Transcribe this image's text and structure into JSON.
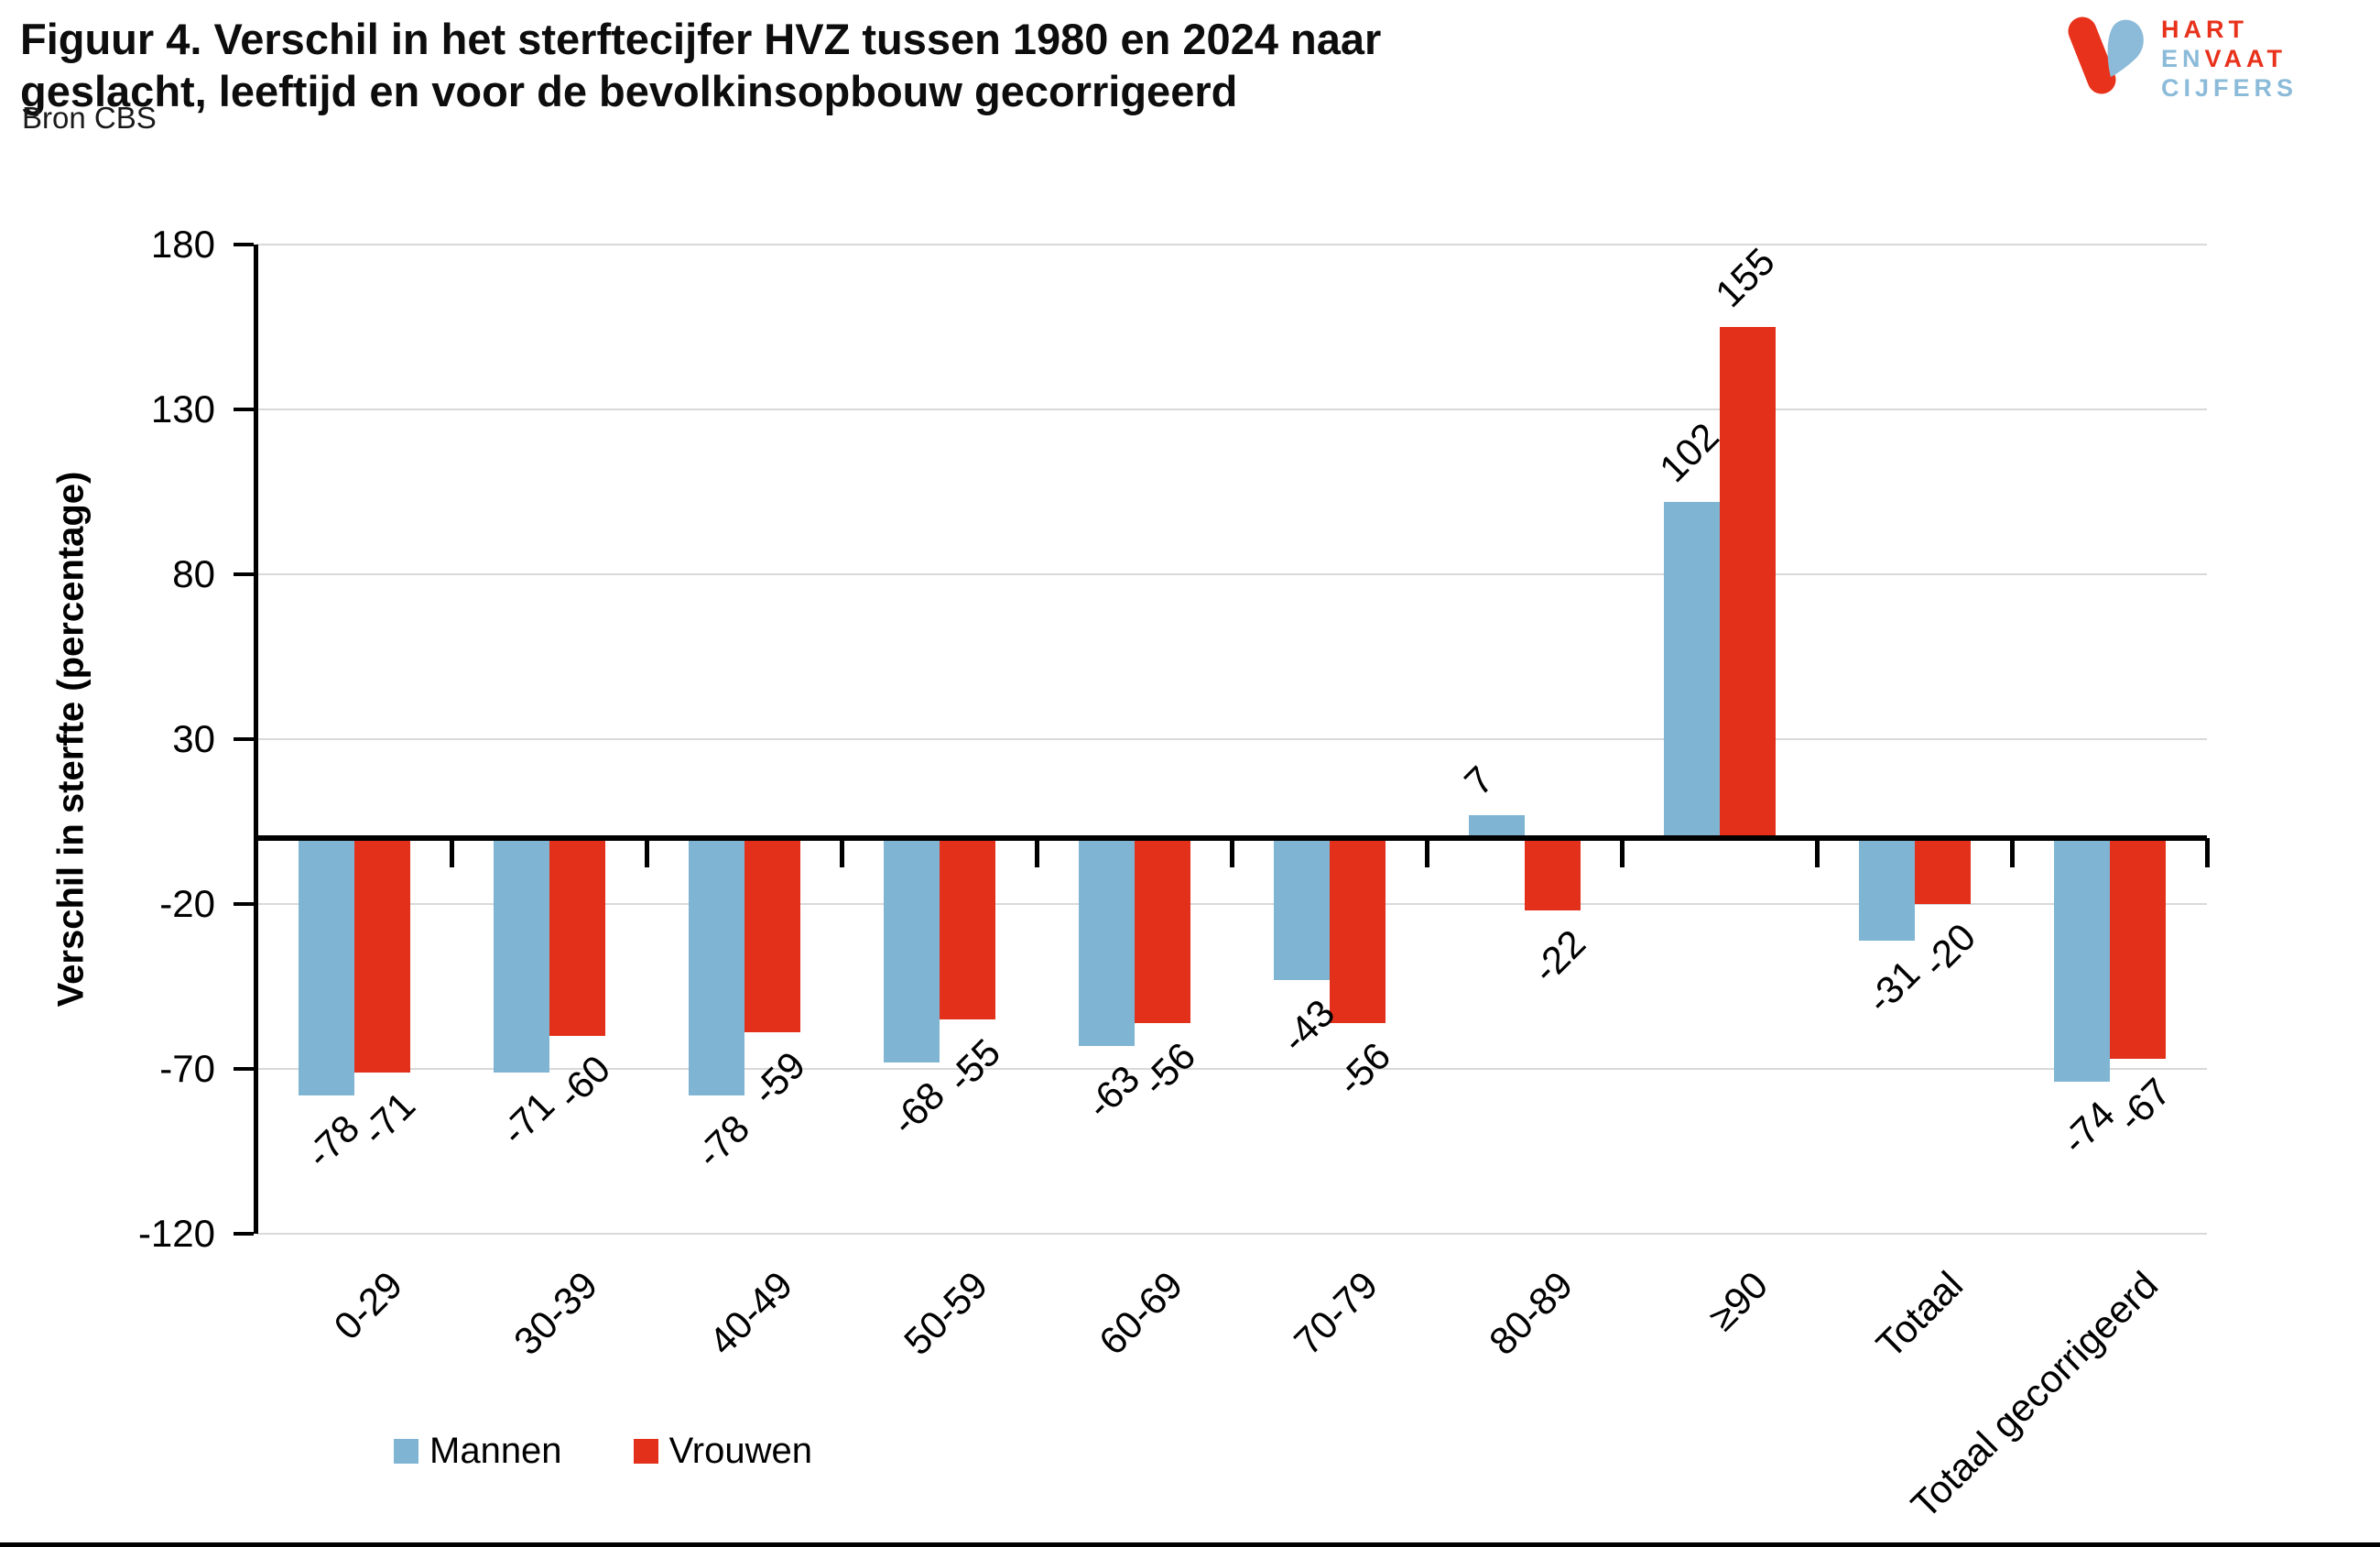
{
  "header": {
    "title_line1": "Figuur 4. Verschil in het sterftecijfer HVZ tussen 1980 en 2024 naar",
    "title_line2": "geslacht, leeftijd en voor de bevolkinsopbouw gecorrigeerd",
    "source": "Bron CBS"
  },
  "logo": {
    "line1": "HART",
    "line2_part1": "EN",
    "line2_part2": "VAAT",
    "line3": "CIJFERS",
    "red": "#E8321C",
    "blue": "#8BBBD9"
  },
  "chart_data": {
    "type": "bar",
    "title": "Figuur 4. Verschil in het sterftecijfer HVZ tussen 1980 en 2024 naar geslacht, leeftijd en voor de bevolkinsopbouw gecorrigeerd",
    "source": "Bron CBS",
    "categories": [
      "0-29",
      "30-39",
      "40-49",
      "50-59",
      "60-69",
      "70-79",
      "80-89",
      "≥90",
      "Totaal",
      "Totaal gecorrigeerd"
    ],
    "series": [
      {
        "name": "Mannen",
        "color": "#7FB5D3",
        "values": [
          -78,
          -71,
          -78,
          -68,
          -63,
          -43,
          7,
          102,
          -31,
          -74
        ]
      },
      {
        "name": "Vrouwen",
        "color": "#E2301B",
        "values": [
          -71,
          -60,
          -59,
          -55,
          -56,
          -56,
          -22,
          155,
          -20,
          -67
        ]
      }
    ],
    "xlabel": "",
    "ylabel": "Verschil in sterfte (percentage)",
    "yticks": [
      180,
      130,
      80,
      30,
      -20,
      -70,
      -120
    ],
    "ylim": [
      -120,
      180
    ],
    "grid": true,
    "data_labels": true,
    "legend_position": "bottom-left"
  },
  "colors": {
    "grid": "#D9D9D9",
    "axis": "#000000"
  }
}
